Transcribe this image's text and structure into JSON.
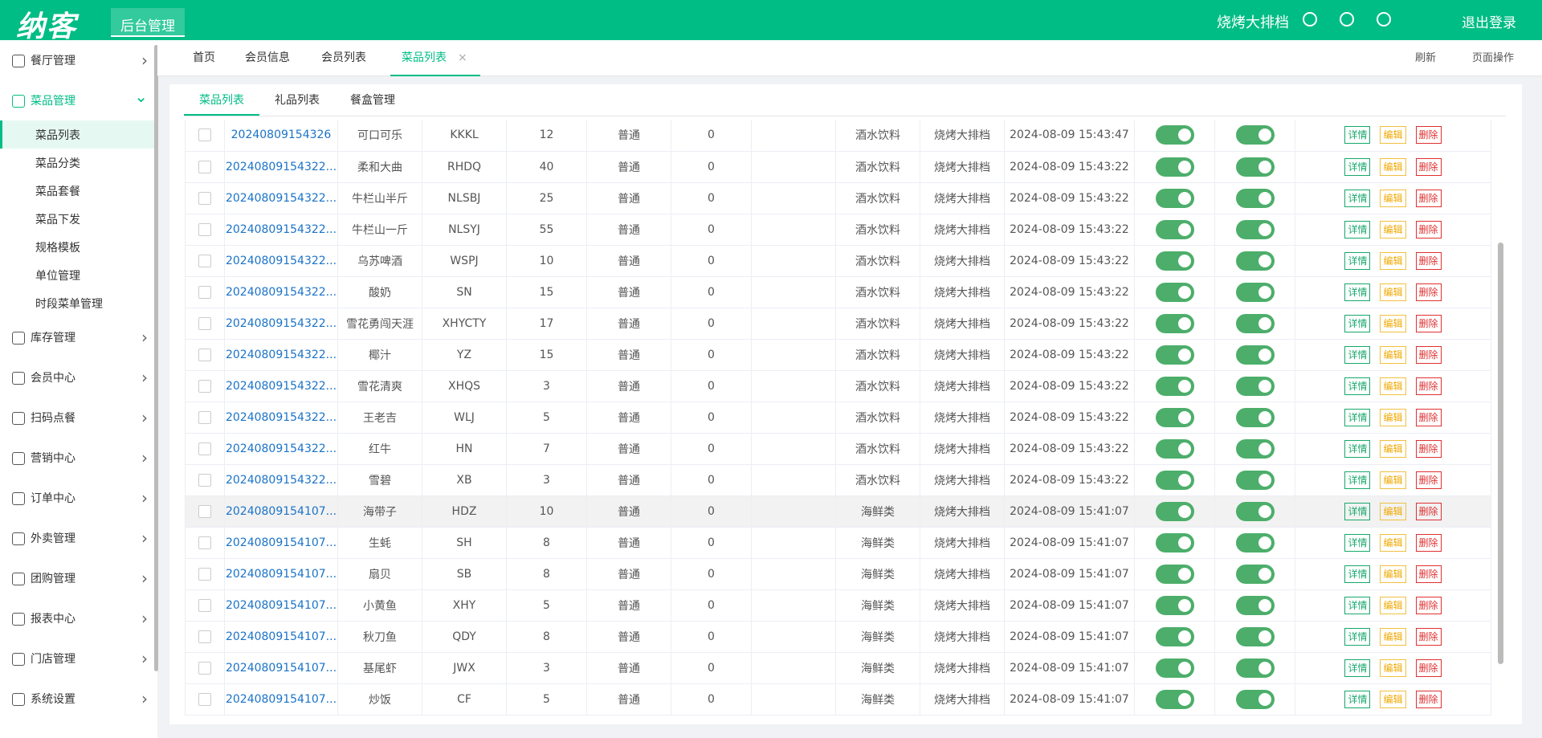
{
  "header": {
    "logo": "纳客",
    "title": "后台管理",
    "user": "烧烤大排档",
    "logout": "退出登录"
  },
  "sidebar": {
    "items": [
      {
        "label": "餐厅管理"
      },
      {
        "label": "菜品管理",
        "children": [
          "菜品列表",
          "菜品分类",
          "菜品套餐",
          "菜品下发",
          "规格模板",
          "单位管理",
          "时段菜单管理"
        ]
      },
      {
        "label": "库存管理"
      },
      {
        "label": "会员中心"
      },
      {
        "label": "扫码点餐"
      },
      {
        "label": "营销中心"
      },
      {
        "label": "订单中心"
      },
      {
        "label": "外卖管理"
      },
      {
        "label": "团购管理"
      },
      {
        "label": "报表中心"
      },
      {
        "label": "门店管理"
      },
      {
        "label": "系统设置"
      }
    ]
  },
  "tabs": {
    "items": [
      "首页",
      "会员信息",
      "会员列表",
      "菜品列表"
    ],
    "close": "×",
    "refresh": "刷新",
    "page_ops": "页面操作"
  },
  "subtabs": [
    "菜品列表",
    "礼品列表",
    "餐盒管理"
  ],
  "table": {
    "actions": [
      "详情",
      "编辑",
      "删除"
    ],
    "rows": [
      [
        "20240809154326",
        "可口可乐",
        "KKKL",
        12,
        "普通",
        0,
        "酒水饮料",
        "烧烤大排档",
        "2024-08-09 15:43:47"
      ],
      [
        "20240809154322...",
        "柔和大曲",
        "RHDQ",
        40,
        "普通",
        0,
        "酒水饮料",
        "烧烤大排档",
        "2024-08-09 15:43:22"
      ],
      [
        "20240809154322...",
        "牛栏山半斤",
        "NLSBJ",
        25,
        "普通",
        0,
        "酒水饮料",
        "烧烤大排档",
        "2024-08-09 15:43:22"
      ],
      [
        "20240809154322...",
        "牛栏山一斤",
        "NLSYJ",
        55,
        "普通",
        0,
        "酒水饮料",
        "烧烤大排档",
        "2024-08-09 15:43:22"
      ],
      [
        "20240809154322...",
        "乌苏啤酒",
        "WSPJ",
        10,
        "普通",
        0,
        "酒水饮料",
        "烧烤大排档",
        "2024-08-09 15:43:22"
      ],
      [
        "20240809154322...",
        "酸奶",
        "SN",
        15,
        "普通",
        0,
        "酒水饮料",
        "烧烤大排档",
        "2024-08-09 15:43:22"
      ],
      [
        "20240809154322...",
        "雪花勇闯天涯",
        "XHYCTY",
        17,
        "普通",
        0,
        "酒水饮料",
        "烧烤大排档",
        "2024-08-09 15:43:22"
      ],
      [
        "20240809154322...",
        "椰汁",
        "YZ",
        15,
        "普通",
        0,
        "酒水饮料",
        "烧烤大排档",
        "2024-08-09 15:43:22"
      ],
      [
        "20240809154322...",
        "雪花清爽",
        "XHQS",
        3,
        "普通",
        0,
        "酒水饮料",
        "烧烤大排档",
        "2024-08-09 15:43:22"
      ],
      [
        "20240809154322...",
        "王老吉",
        "WLJ",
        5,
        "普通",
        0,
        "酒水饮料",
        "烧烤大排档",
        "2024-08-09 15:43:22"
      ],
      [
        "20240809154322...",
        "红牛",
        "HN",
        7,
        "普通",
        0,
        "酒水饮料",
        "烧烤大排档",
        "2024-08-09 15:43:22"
      ],
      [
        "20240809154322...",
        "雪碧",
        "XB",
        3,
        "普通",
        0,
        "酒水饮料",
        "烧烤大排档",
        "2024-08-09 15:43:22"
      ],
      [
        "20240809154107...",
        "海带子",
        "HDZ",
        10,
        "普通",
        0,
        "海鲜类",
        "烧烤大排档",
        "2024-08-09 15:41:07"
      ],
      [
        "20240809154107...",
        "生蚝",
        "SH",
        8,
        "普通",
        0,
        "海鲜类",
        "烧烤大排档",
        "2024-08-09 15:41:07"
      ],
      [
        "20240809154107...",
        "扇贝",
        "SB",
        8,
        "普通",
        0,
        "海鲜类",
        "烧烤大排档",
        "2024-08-09 15:41:07"
      ],
      [
        "20240809154107...",
        "小黄鱼",
        "XHY",
        5,
        "普通",
        0,
        "海鲜类",
        "烧烤大排档",
        "2024-08-09 15:41:07"
      ],
      [
        "20240809154107...",
        "秋刀鱼",
        "QDY",
        8,
        "普通",
        0,
        "海鲜类",
        "烧烤大排档",
        "2024-08-09 15:41:07"
      ],
      [
        "20240809154107...",
        "基尾虾",
        "JWX",
        3,
        "普通",
        0,
        "海鲜类",
        "烧烤大排档",
        "2024-08-09 15:41:07"
      ],
      [
        "20240809154107...",
        "炒饭",
        "CF",
        5,
        "普通",
        0,
        "海鲜类",
        "烧烤大排档",
        "2024-08-09 15:41:07"
      ]
    ]
  }
}
